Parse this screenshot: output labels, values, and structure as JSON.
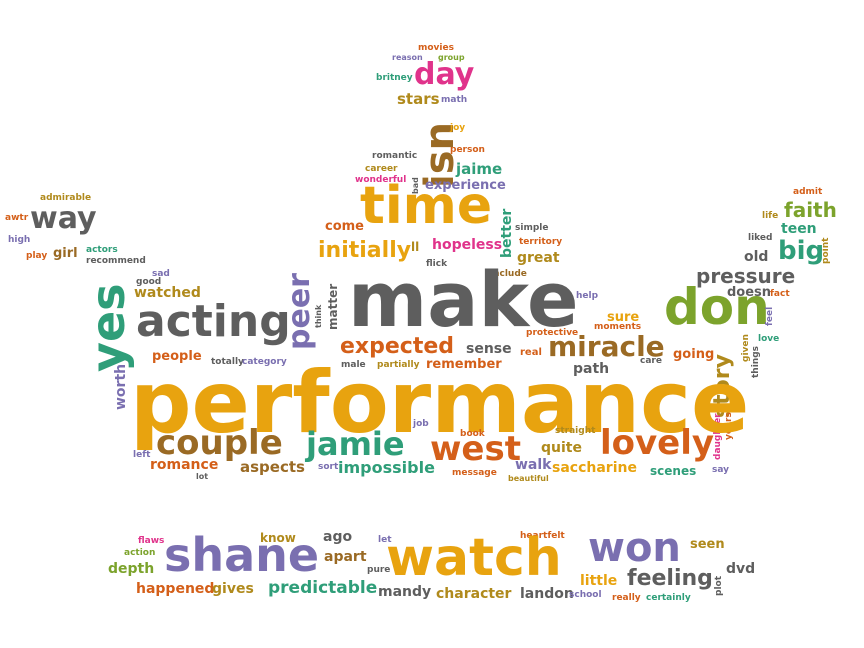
{
  "words": {
    "performance": "performance",
    "make": "make",
    "watch": "watch",
    "shane": "shane",
    "time": "time",
    "acting": "acting",
    "don": "don",
    "won": "won",
    "isn": "isn",
    "yes": "yes",
    "west": "west",
    "lovely": "lovely",
    "couple": "couple",
    "jamie": "jamie",
    "miracle": "miracle",
    "way": "way",
    "peer": "peer",
    "day": "day",
    "expected": "expected",
    "initially": "initially",
    "story": "story",
    "pressure": "pressure",
    "feeling": "feeling",
    "big": "big",
    "faith": "faith",
    "predictable": "predictable",
    "impossible": "impossible",
    "hopeless": "hopeless",
    "saccharine": "saccharine",
    "watched": "watched",
    "romance": "romance",
    "aspects": "aspects",
    "people": "people",
    "sense": "sense",
    "remember": "remember",
    "stars": "stars",
    "experience": "experience",
    "jaime": "jaime",
    "great": "great",
    "better": "better",
    "come": "come",
    "happened": "happened",
    "character": "character",
    "landon": "landon",
    "mandy": "mandy",
    "gives": "gives",
    "depth": "depth",
    "apart": "apart",
    "ago": "ago",
    "know": "know",
    "seen": "seen",
    "dvd": "dvd",
    "little": "little",
    "worth": "worth",
    "girl": "girl",
    "teen": "teen",
    "old": "old",
    "doesn": "doesn",
    "sure": "sure",
    "going": "going",
    "path": "path",
    "quite": "quite",
    "walk": "walk",
    "scenes": "scenes",
    "matter": "matter",
    "movies": "movies",
    "group": "group",
    "reason": "reason",
    "britney": "britney",
    "math": "math",
    "joy": "joy",
    "person": "person",
    "romantic": "romantic",
    "career": "career",
    "wonderful": "wonderful",
    "bad": "bad",
    "admirable": "admirable",
    "awtr": "awtr",
    "high": "high",
    "play": "play",
    "actors": "actors",
    "recommend": "recommend",
    "sad": "sad",
    "good": "good",
    "simple": "simple",
    "territory": "territory",
    "ll": "ll",
    "flick": "flick",
    "include": "include",
    "help": "help",
    "think": "think",
    "protective": "protective",
    "moments": "moments",
    "totally": "totally",
    "category": "category",
    "male": "male",
    "partially": "partially",
    "real": "real",
    "care": "care",
    "admit": "admit",
    "life": "life",
    "liked": "liked",
    "point": "point",
    "fact": "fact",
    "feel": "feel",
    "love": "love",
    "given": "given",
    "things": "things",
    "daughter": "daughter",
    "years": "years",
    "say": "say",
    "straight": "straight",
    "book": "book",
    "job": "job",
    "message": "message",
    "beautiful": "beautiful",
    "left": "left",
    "lot": "lot",
    "sort": "sort",
    "flaws": "flaws",
    "action": "action",
    "heartfelt": "heartfelt",
    "let": "let",
    "pure": "pure",
    "school": "school",
    "really": "really",
    "certainly": "certainly",
    "plot": "plot"
  },
  "colors": {
    "gold": "#e8a30f",
    "gray": "#5e5e5e",
    "orange": "#d45f19",
    "teal": "#2f9e79",
    "purple": "#7a6fb0",
    "pink": "#e0338b",
    "brown": "#9a6a24",
    "green": "#7ca32c",
    "olive": "#b08a1c"
  }
}
